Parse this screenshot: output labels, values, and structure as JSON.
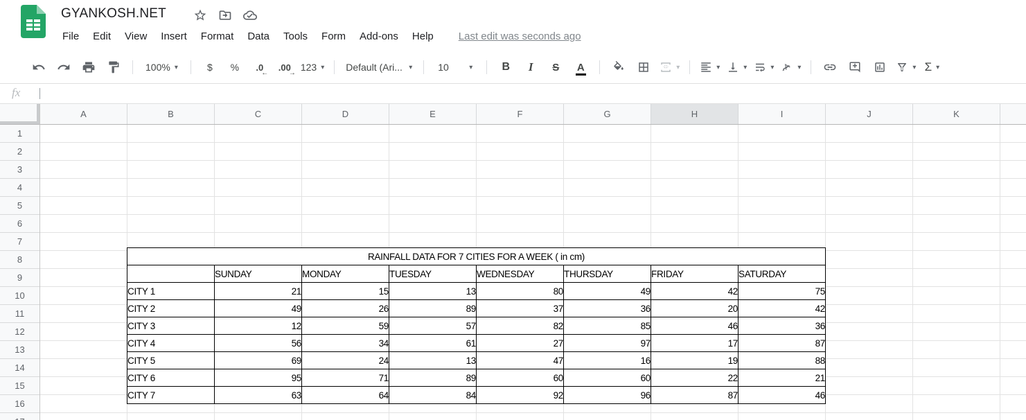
{
  "titlebar": {
    "document_title": "GYANKOSH.NET",
    "icons": [
      "star-icon",
      "move-to-folder-icon",
      "cloud-saved-icon"
    ],
    "menu_items": [
      "File",
      "Edit",
      "View",
      "Insert",
      "Format",
      "Data",
      "Tools",
      "Form",
      "Add-ons",
      "Help"
    ],
    "last_edit": "Last edit was seconds ago"
  },
  "toolbar": {
    "zoom": "100%",
    "currency": "$",
    "percent": "%",
    "decrease_decimal": ".0",
    "decrease_decimal_arrow": "←",
    "increase_decimal": ".00",
    "increase_decimal_arrow": "→",
    "more_formats": "123",
    "font": "Default (Ari...",
    "font_size": "10",
    "bold": "B",
    "italic": "I",
    "strikethrough": "S",
    "text_color": "A",
    "functions": "Σ",
    "icons": [
      "undo-icon",
      "redo-icon",
      "print-icon",
      "paint-format-icon",
      "fill-color-icon",
      "borders-icon",
      "merge-cells-icon",
      "horizontal-align-icon",
      "vertical-align-icon",
      "text-wrapping-icon",
      "text-rotation-icon",
      "insert-link-icon",
      "insert-comment-icon",
      "insert-chart-icon",
      "filter-icon"
    ]
  },
  "formula_bar": {
    "fx_label": "fx",
    "value": ""
  },
  "grid": {
    "columns": [
      "A",
      "B",
      "C",
      "D",
      "E",
      "F",
      "G",
      "H",
      "I",
      "J",
      "K"
    ],
    "highlighted_column": "H",
    "visible_rows": 17
  },
  "sheet_table": {
    "title": "RAINFALL DATA FOR 7 CITIES FOR A WEEK ( in cm)",
    "day_headers": [
      "SUNDAY",
      "MONDAY",
      "TUESDAY",
      "WEDNESDAY",
      "THURSDAY",
      "FRIDAY",
      "SATURDAY"
    ],
    "rows": [
      {
        "label": "CITY 1",
        "values": [
          21,
          15,
          13,
          80,
          49,
          42,
          75
        ]
      },
      {
        "label": "CITY 2",
        "values": [
          49,
          26,
          89,
          37,
          36,
          20,
          42
        ]
      },
      {
        "label": "CITY 3",
        "values": [
          12,
          59,
          57,
          82,
          85,
          46,
          36
        ]
      },
      {
        "label": "CITY 4",
        "values": [
          56,
          34,
          61,
          27,
          97,
          17,
          87
        ]
      },
      {
        "label": "CITY 5",
        "values": [
          69,
          24,
          13,
          47,
          16,
          19,
          88
        ]
      },
      {
        "label": "CITY 6",
        "values": [
          95,
          71,
          89,
          60,
          60,
          22,
          21
        ]
      },
      {
        "label": "CITY 7",
        "values": [
          63,
          64,
          84,
          92,
          96,
          87,
          46
        ]
      }
    ]
  },
  "colors": {
    "logo_green": "#23a566",
    "logo_fold": "#8ed1b1",
    "header_bg": "#f8f9fa",
    "column_highlight": "#e2e4e6",
    "gridline": "#e2e2e2",
    "table_border": "#000000",
    "icon_gray": "#5f6368",
    "last_edit_gray": "#80868b"
  }
}
